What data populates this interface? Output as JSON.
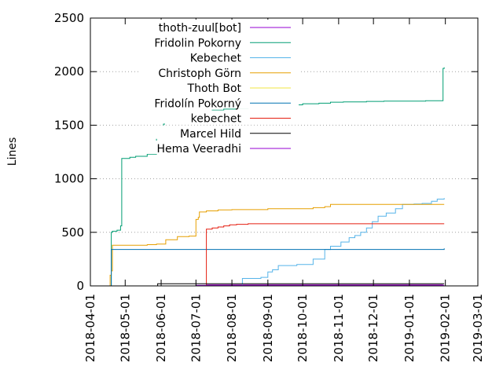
{
  "chart_data": {
    "type": "line",
    "title": "",
    "xlabel": "",
    "ylabel": "Lines",
    "x_range": [
      "2018-04-01",
      "2019-03-01"
    ],
    "x_ticks": [
      "2018-04-01",
      "2018-05-01",
      "2018-06-01",
      "2018-07-01",
      "2018-08-01",
      "2018-09-01",
      "2018-10-01",
      "2018-11-01",
      "2018-12-01",
      "2019-01-01",
      "2019-02-01",
      "2019-03-01"
    ],
    "ylim": [
      0,
      2500
    ],
    "y_ticks": [
      0,
      500,
      1000,
      1500,
      2000,
      2500
    ],
    "grid": "horizontal dotted",
    "legend_position": "top-left",
    "series": [
      {
        "name": "thoth-zuul[bot]",
        "color": "#9400d3",
        "points": [
          [
            "2018-07-10",
            0
          ],
          [
            "2018-07-10",
            10
          ],
          [
            "2019-01-30",
            10
          ]
        ]
      },
      {
        "name": "Fridolin Pokorny",
        "color": "#009e73",
        "points": [
          [
            "2018-04-19",
            0
          ],
          [
            "2018-04-19",
            500
          ],
          [
            "2018-04-20",
            510
          ],
          [
            "2018-04-24",
            520
          ],
          [
            "2018-04-27",
            560
          ],
          [
            "2018-04-28",
            1190
          ],
          [
            "2018-05-05",
            1200
          ],
          [
            "2018-05-10",
            1210
          ],
          [
            "2018-05-20",
            1230
          ],
          [
            "2018-05-28",
            1240
          ],
          [
            "2018-05-28",
            1470
          ],
          [
            "2018-06-01",
            1480
          ],
          [
            "2018-06-03",
            1510
          ],
          [
            "2018-06-04",
            1525
          ],
          [
            "2018-06-15",
            1530
          ],
          [
            "2018-06-25",
            1545
          ],
          [
            "2018-06-26",
            1620
          ],
          [
            "2018-07-05",
            1630
          ],
          [
            "2018-07-15",
            1640
          ],
          [
            "2018-07-25",
            1650
          ],
          [
            "2018-08-05",
            1660
          ],
          [
            "2018-08-15",
            1665
          ],
          [
            "2018-08-25",
            1675
          ],
          [
            "2018-09-05",
            1680
          ],
          [
            "2018-09-20",
            1690
          ],
          [
            "2018-10-01",
            1700
          ],
          [
            "2018-10-15",
            1705
          ],
          [
            "2018-10-25",
            1715
          ],
          [
            "2018-11-05",
            1718
          ],
          [
            "2018-11-25",
            1722
          ],
          [
            "2018-12-10",
            1725
          ],
          [
            "2019-01-15",
            1728
          ],
          [
            "2019-01-30",
            1730
          ],
          [
            "2019-01-30",
            2030
          ],
          [
            "2019-01-31",
            2040
          ]
        ]
      },
      {
        "name": "Kebechet",
        "color": "#56b4e9",
        "points": [
          [
            "2018-08-10",
            0
          ],
          [
            "2018-08-10",
            70
          ],
          [
            "2018-08-26",
            80
          ],
          [
            "2018-09-01",
            130
          ],
          [
            "2018-09-05",
            150
          ],
          [
            "2018-09-10",
            190
          ],
          [
            "2018-09-26",
            200
          ],
          [
            "2018-10-10",
            250
          ],
          [
            "2018-10-20",
            340
          ],
          [
            "2018-10-25",
            370
          ],
          [
            "2018-11-03",
            410
          ],
          [
            "2018-11-10",
            450
          ],
          [
            "2018-11-15",
            470
          ],
          [
            "2018-11-20",
            500
          ],
          [
            "2018-11-25",
            540
          ],
          [
            "2018-11-30",
            600
          ],
          [
            "2018-12-05",
            650
          ],
          [
            "2018-12-12",
            680
          ],
          [
            "2018-12-20",
            720
          ],
          [
            "2018-12-26",
            760
          ],
          [
            "2019-01-05",
            765
          ],
          [
            "2019-01-12",
            770
          ],
          [
            "2019-01-20",
            790
          ],
          [
            "2019-01-25",
            810
          ],
          [
            "2019-01-31",
            820
          ]
        ]
      },
      {
        "name": "Christoph Görn",
        "color": "#e69f00",
        "points": [
          [
            "2018-04-18",
            0
          ],
          [
            "2018-04-18",
            100
          ],
          [
            "2018-04-19",
            140
          ],
          [
            "2018-04-20",
            380
          ],
          [
            "2018-05-20",
            385
          ],
          [
            "2018-05-28",
            390
          ],
          [
            "2018-06-05",
            430
          ],
          [
            "2018-06-15",
            460
          ],
          [
            "2018-06-25",
            465
          ],
          [
            "2018-07-01",
            470
          ],
          [
            "2018-07-01",
            620
          ],
          [
            "2018-07-03",
            640
          ],
          [
            "2018-07-04",
            690
          ],
          [
            "2018-07-10",
            700
          ],
          [
            "2018-07-20",
            710
          ],
          [
            "2018-08-01",
            712
          ],
          [
            "2018-09-01",
            720
          ],
          [
            "2018-10-10",
            730
          ],
          [
            "2018-10-20",
            740
          ],
          [
            "2018-10-25",
            760
          ],
          [
            "2019-01-31",
            760
          ]
        ]
      },
      {
        "name": "Thoth Bot",
        "color": "#f0e442",
        "points": [
          [
            "2018-07-10",
            0
          ],
          [
            "2018-07-10",
            5
          ],
          [
            "2019-01-30",
            5
          ]
        ]
      },
      {
        "name": "Fridolín Pokorný",
        "color": "#0072b2",
        "points": [
          [
            "2018-04-19",
            0
          ],
          [
            "2018-04-19",
            340
          ],
          [
            "2019-01-30",
            340
          ],
          [
            "2019-01-31",
            350
          ]
        ]
      },
      {
        "name": "kebechet",
        "color": "#e51e10",
        "points": [
          [
            "2018-07-10",
            0
          ],
          [
            "2018-07-10",
            530
          ],
          [
            "2018-07-15",
            540
          ],
          [
            "2018-07-20",
            550
          ],
          [
            "2018-07-25",
            560
          ],
          [
            "2018-07-30",
            570
          ],
          [
            "2018-08-05",
            575
          ],
          [
            "2018-08-15",
            580
          ],
          [
            "2019-01-31",
            580
          ]
        ]
      },
      {
        "name": "Marcel Hild",
        "color": "#000000",
        "points": [
          [
            "2018-05-29",
            0
          ],
          [
            "2018-05-29",
            20
          ],
          [
            "2019-01-31",
            20
          ]
        ]
      },
      {
        "name": "Hema Veeradhi",
        "color": "#9400d3",
        "points": [
          [
            "2018-07-01",
            0
          ],
          [
            "2018-07-01",
            5
          ],
          [
            "2019-01-31",
            5
          ]
        ]
      }
    ]
  }
}
